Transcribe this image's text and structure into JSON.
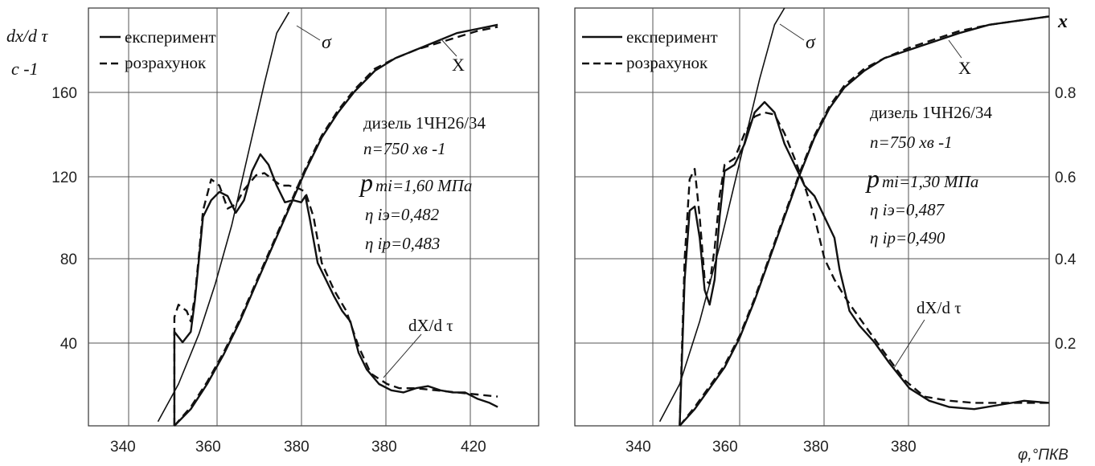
{
  "figure": {
    "left_panel": {
      "y_axis_label": "dx/d τ",
      "y_axis_unit": "с -1",
      "y_ticks": [
        "160",
        "120",
        "80",
        "40"
      ],
      "x_ticks": [
        "340",
        "360",
        "380",
        "380",
        "420"
      ],
      "legend": {
        "solid": "експеримент",
        "dashed": "розрахунок"
      },
      "annotations": {
        "sigma": "σ",
        "x_curve": "X",
        "rate_curve": "dX/d τ",
        "engine": "дизель 1ЧН26/34",
        "speed": "n=750 хв -1",
        "pmi_p": "p",
        "pmi_rest": "mi=1,60 МПа",
        "eta_e": "η iэ=0,482",
        "eta_r": "η ip=0,483"
      }
    },
    "right_panel": {
      "y_axis_label_right": "x",
      "y_ticks_right": [
        "0.8",
        "0.6",
        "0.4",
        "0.2"
      ],
      "x_ticks": [
        "340",
        "360",
        "380",
        "380"
      ],
      "x_axis_label": "φ,°ПКВ",
      "legend": {
        "solid": "експеримент",
        "dashed": "розрахунок"
      },
      "annotations": {
        "sigma": "σ",
        "x_curve": "X",
        "rate_curve": "dX/d τ",
        "engine": "дизель 1ЧН26/34",
        "speed": "n=750 хв -1",
        "pmi_p": "p",
        "pmi_rest": "mi=1,30 МПа",
        "eta_e": "η iэ=0,487",
        "eta_r": "η ip=0,490"
      }
    }
  },
  "chart_data": [
    {
      "type": "line",
      "ylabel": "dx/dτ, с⁻¹",
      "xlim": [
        330,
        440
      ],
      "ylim": [
        0,
        200
      ],
      "grid": true,
      "legend_position": "top-left",
      "series": [
        {
          "name": "експеримент",
          "style": "solid",
          "curve": "dX/dτ",
          "points": [
            [
              351,
              0
            ],
            [
              351,
              45
            ],
            [
              353,
              40
            ],
            [
              355,
              45
            ],
            [
              356,
              60
            ],
            [
              357,
              80
            ],
            [
              358,
              100
            ],
            [
              360,
              108
            ],
            [
              362,
              112
            ],
            [
              364,
              110
            ],
            [
              366,
              102
            ],
            [
              368,
              108
            ],
            [
              370,
              122
            ],
            [
              372,
              130
            ],
            [
              374,
              125
            ],
            [
              376,
              115
            ],
            [
              378,
              107
            ],
            [
              380,
              108
            ],
            [
              382,
              107
            ],
            [
              383,
              110
            ],
            [
              384,
              100
            ],
            [
              386,
              78
            ],
            [
              388,
              70
            ],
            [
              390,
              62
            ],
            [
              392,
              55
            ],
            [
              394,
              50
            ],
            [
              396,
              35
            ],
            [
              398,
              27
            ],
            [
              401,
              20
            ],
            [
              404,
              17
            ],
            [
              407,
              16
            ],
            [
              410,
              18
            ],
            [
              413,
              19
            ],
            [
              416,
              17
            ],
            [
              419,
              16
            ],
            [
              422,
              16
            ],
            [
              425,
              13
            ],
            [
              428,
              11
            ],
            [
              430,
              9
            ]
          ]
        },
        {
          "name": "розрахунок",
          "style": "dashed",
          "curve": "dX/dτ",
          "points": [
            [
              351,
              0
            ],
            [
              351,
              52
            ],
            [
              352,
              58
            ],
            [
              354,
              55
            ],
            [
              355,
              50
            ],
            [
              356,
              62
            ],
            [
              357,
              82
            ],
            [
              358,
              103
            ],
            [
              360,
              118
            ],
            [
              362,
              115
            ],
            [
              364,
              104
            ],
            [
              366,
              106
            ],
            [
              368,
              113
            ],
            [
              371,
              120
            ],
            [
              373,
              121
            ],
            [
              375,
              118
            ],
            [
              377,
              115
            ],
            [
              379,
              115
            ],
            [
              381,
              114
            ],
            [
              383,
              112
            ],
            [
              385,
              100
            ],
            [
              387,
              78
            ],
            [
              390,
              65
            ],
            [
              393,
              55
            ],
            [
              396,
              38
            ],
            [
              399,
              25
            ],
            [
              403,
              20
            ],
            [
              406,
              18
            ],
            [
              410,
              18
            ],
            [
              415,
              17
            ],
            [
              420,
              16
            ],
            [
              425,
              15
            ],
            [
              430,
              14
            ]
          ]
        },
        {
          "name": "експеримент",
          "style": "solid",
          "curve": "X",
          "points": [
            [
              351,
              0
            ],
            [
              355,
              0.04
            ],
            [
              359,
              0.1
            ],
            [
              363,
              0.17
            ],
            [
              367,
              0.25
            ],
            [
              371,
              0.34
            ],
            [
              375,
              0.43
            ],
            [
              379,
              0.52
            ],
            [
              383,
              0.61
            ],
            [
              387,
              0.69
            ],
            [
              391,
              0.75
            ],
            [
              395,
              0.8
            ],
            [
              400,
              0.85
            ],
            [
              405,
              0.88
            ],
            [
              410,
              0.9
            ],
            [
              415,
              0.92
            ],
            [
              420,
              0.94
            ],
            [
              425,
              0.95
            ],
            [
              430,
              0.96
            ]
          ]
        },
        {
          "name": "розрахунок",
          "style": "dashed",
          "curve": "X",
          "points": [
            [
              351,
              0
            ],
            [
              355,
              0.045
            ],
            [
              359,
              0.105
            ],
            [
              363,
              0.175
            ],
            [
              367,
              0.255
            ],
            [
              371,
              0.345
            ],
            [
              375,
              0.435
            ],
            [
              379,
              0.525
            ],
            [
              383,
              0.615
            ],
            [
              387,
              0.695
            ],
            [
              391,
              0.755
            ],
            [
              395,
              0.805
            ],
            [
              400,
              0.855
            ],
            [
              405,
              0.88
            ],
            [
              410,
              0.9
            ],
            [
              415,
              0.915
            ],
            [
              420,
              0.93
            ],
            [
              425,
              0.945
            ],
            [
              430,
              0.955
            ]
          ]
        },
        {
          "name": "",
          "style": "solid",
          "curve": "σ",
          "points": [
            [
              347,
              0.01
            ],
            [
              352,
              0.1
            ],
            [
              357,
              0.22
            ],
            [
              361,
              0.34
            ],
            [
              365,
              0.48
            ],
            [
              369,
              0.65
            ],
            [
              373,
              0.82
            ],
            [
              376,
              0.94
            ],
            [
              379,
              0.99
            ]
          ]
        }
      ]
    },
    {
      "type": "line",
      "ylabel": "x",
      "xlabel": "φ,°ПКВ",
      "xlim": [
        330,
        425
      ],
      "ylim": [
        0,
        1
      ],
      "grid": true,
      "legend_position": "top-left",
      "series": [
        {
          "name": "експеримент",
          "style": "solid",
          "curve": "dX/dτ",
          "points": [
            [
              351,
              0
            ],
            [
              352,
              70
            ],
            [
              353,
              103
            ],
            [
              354,
              105
            ],
            [
              355,
              90
            ],
            [
              356,
              65
            ],
            [
              357,
              58
            ],
            [
              358,
              70
            ],
            [
              359,
              100
            ],
            [
              360,
              122
            ],
            [
              362,
              125
            ],
            [
              364,
              135
            ],
            [
              366,
              150
            ],
            [
              368,
              155
            ],
            [
              370,
              150
            ],
            [
              372,
              135
            ],
            [
              374,
              125
            ],
            [
              376,
              115
            ],
            [
              378,
              110
            ],
            [
              380,
              100
            ],
            [
              382,
              90
            ],
            [
              383,
              75
            ],
            [
              385,
              55
            ],
            [
              387,
              48
            ],
            [
              390,
              40
            ],
            [
              393,
              30
            ],
            [
              397,
              18
            ],
            [
              401,
              12
            ],
            [
              405,
              9
            ],
            [
              410,
              8
            ],
            [
              415,
              10
            ],
            [
              420,
              12
            ],
            [
              425,
              11
            ]
          ]
        },
        {
          "name": "розрахунок",
          "style": "dashed",
          "curve": "dX/dτ",
          "points": [
            [
              351,
              0
            ],
            [
              352,
              80
            ],
            [
              353,
              118
            ],
            [
              354,
              123
            ],
            [
              355,
              100
            ],
            [
              356,
              70
            ],
            [
              357,
              68
            ],
            [
              358,
              85
            ],
            [
              359,
              110
            ],
            [
              360,
              125
            ],
            [
              362,
              128
            ],
            [
              364,
              140
            ],
            [
              366,
              148
            ],
            [
              368,
              150
            ],
            [
              370,
              149
            ],
            [
              372,
              140
            ],
            [
              374,
              128
            ],
            [
              376,
              115
            ],
            [
              378,
              100
            ],
            [
              380,
              80
            ],
            [
              382,
              70
            ],
            [
              384,
              62
            ],
            [
              386,
              55
            ],
            [
              389,
              45
            ],
            [
              392,
              35
            ],
            [
              396,
              22
            ],
            [
              400,
              14
            ],
            [
              405,
              12
            ],
            [
              410,
              11
            ],
            [
              415,
              11
            ],
            [
              420,
              11
            ],
            [
              425,
              11
            ]
          ]
        },
        {
          "name": "експеримент",
          "style": "solid",
          "curve": "X",
          "points": [
            [
              351,
              0
            ],
            [
              354,
              0.04
            ],
            [
              357,
              0.09
            ],
            [
              360,
              0.14
            ],
            [
              363,
              0.21
            ],
            [
              366,
              0.3
            ],
            [
              369,
              0.4
            ],
            [
              372,
              0.5
            ],
            [
              375,
              0.6
            ],
            [
              378,
              0.69
            ],
            [
              381,
              0.76
            ],
            [
              384,
              0.81
            ],
            [
              388,
              0.85
            ],
            [
              392,
              0.88
            ],
            [
              397,
              0.9
            ],
            [
              402,
              0.92
            ],
            [
              407,
              0.94
            ],
            [
              413,
              0.96
            ],
            [
              419,
              0.97
            ],
            [
              425,
              0.98
            ]
          ]
        },
        {
          "name": "розрахунок",
          "style": "dashed",
          "curve": "X",
          "points": [
            [
              351,
              0
            ],
            [
              354,
              0.045
            ],
            [
              357,
              0.095
            ],
            [
              360,
              0.145
            ],
            [
              363,
              0.215
            ],
            [
              366,
              0.305
            ],
            [
              369,
              0.405
            ],
            [
              372,
              0.505
            ],
            [
              375,
              0.605
            ],
            [
              378,
              0.695
            ],
            [
              381,
              0.765
            ],
            [
              384,
              0.815
            ],
            [
              388,
              0.855
            ],
            [
              392,
              0.88
            ],
            [
              397,
              0.905
            ],
            [
              402,
              0.925
            ],
            [
              407,
              0.945
            ],
            [
              413,
              0.96
            ],
            [
              419,
              0.97
            ],
            [
              425,
              0.98
            ]
          ]
        },
        {
          "name": "",
          "style": "solid",
          "curve": "σ",
          "points": [
            [
              347,
              0.01
            ],
            [
              351,
              0.1
            ],
            [
              355,
              0.25
            ],
            [
              359,
              0.43
            ],
            [
              363,
              0.63
            ],
            [
              367,
              0.83
            ],
            [
              370,
              0.96
            ],
            [
              372,
              1.0
            ]
          ]
        }
      ]
    }
  ]
}
